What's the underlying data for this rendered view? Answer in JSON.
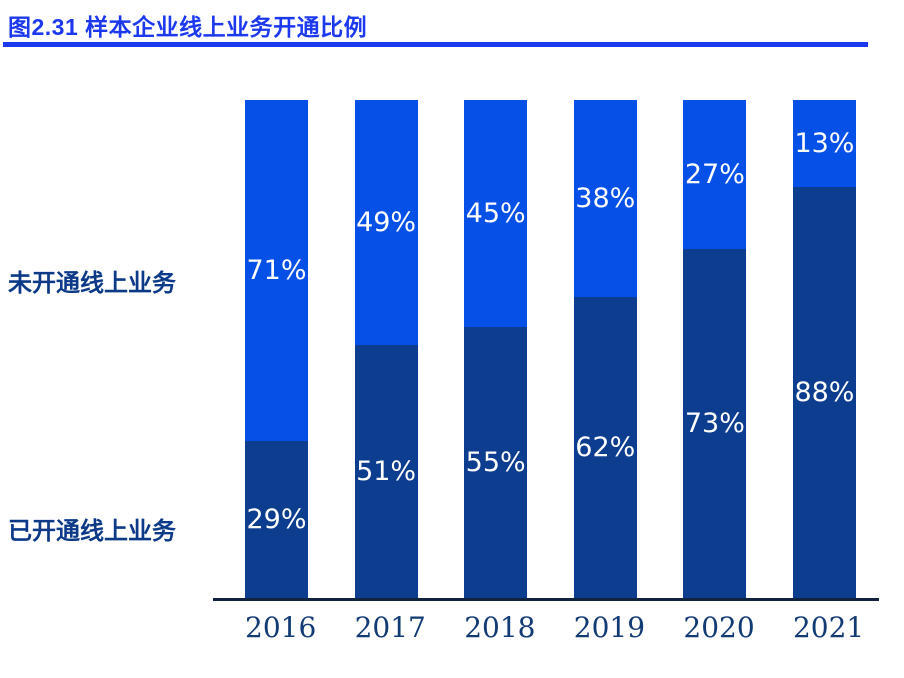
{
  "title": "图2.31 样本企业线上业务开通比例",
  "accent_color": "#1d39f0",
  "chart_data": {
    "type": "bar",
    "subtype": "stacked-percentage",
    "orientation": "vertical",
    "title": "图2.31 样本企业线上业务开通比例",
    "categories": [
      "2016",
      "2017",
      "2018",
      "2019",
      "2020",
      "2021"
    ],
    "series": [
      {
        "name": "未开通线上业务",
        "color": "#0551e8",
        "values": [
          71,
          49,
          45,
          38,
          27,
          13
        ]
      },
      {
        "name": "已开通线上业务",
        "color": "#0d3d8e",
        "values": [
          29,
          51,
          55,
          62,
          73,
          88
        ]
      }
    ],
    "value_suffix": "%",
    "value_label_color": "#ffffff",
    "legend_position": "left",
    "grid": false,
    "ylim": [
      0,
      100
    ],
    "baseline_color": "#12233f",
    "category_label_color": "#123a75",
    "series_label_color": "#0d3a88"
  }
}
